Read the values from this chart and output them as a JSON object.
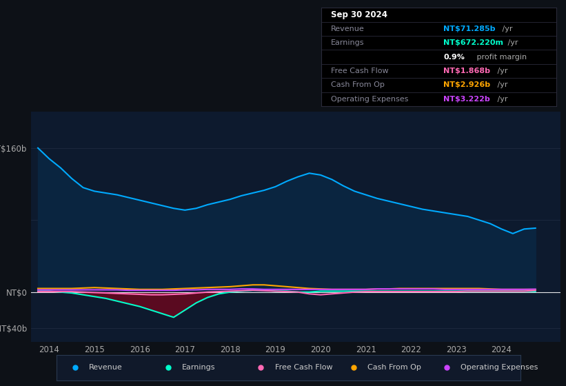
{
  "background_color": "#0d1117",
  "plot_bg_color": "#0d1a2e",
  "ylim": [
    -55,
    200
  ],
  "xlim_start": 2013.6,
  "xlim_end": 2025.3,
  "xticks": [
    2014,
    2015,
    2016,
    2017,
    2018,
    2019,
    2020,
    2021,
    2022,
    2023,
    2024
  ],
  "ytick_labels": [
    "NT$160b",
    "NT$0",
    "-NT$40b"
  ],
  "ytick_values": [
    160,
    0,
    -40
  ],
  "gridline_y": [
    160,
    80,
    0,
    -40
  ],
  "revenue_color": "#00aaff",
  "revenue_fill": "#0a2540",
  "earnings_color": "#00ffcc",
  "earnings_fill_neg": "#5a0a20",
  "free_cash_flow_color": "#ff69b4",
  "cash_from_op_color": "#ffa500",
  "operating_expenses_color": "#cc44ff",
  "revenue_x": [
    2013.75,
    2014.0,
    2014.25,
    2014.5,
    2014.75,
    2015.0,
    2015.25,
    2015.5,
    2015.75,
    2016.0,
    2016.25,
    2016.5,
    2016.75,
    2017.0,
    2017.25,
    2017.5,
    2017.75,
    2018.0,
    2018.25,
    2018.5,
    2018.75,
    2019.0,
    2019.25,
    2019.5,
    2019.75,
    2020.0,
    2020.25,
    2020.5,
    2020.75,
    2021.0,
    2021.25,
    2021.5,
    2021.75,
    2022.0,
    2022.25,
    2022.5,
    2022.75,
    2023.0,
    2023.25,
    2023.5,
    2023.75,
    2024.0,
    2024.25,
    2024.5,
    2024.75
  ],
  "revenue_y": [
    160,
    148,
    138,
    126,
    116,
    112,
    110,
    108,
    105,
    102,
    99,
    96,
    93,
    91,
    93,
    97,
    100,
    103,
    107,
    110,
    113,
    117,
    123,
    128,
    132,
    130,
    125,
    118,
    112,
    108,
    104,
    101,
    98,
    95,
    92,
    90,
    88,
    86,
    84,
    80,
    76,
    70,
    65,
    70,
    71
  ],
  "earnings_x": [
    2013.75,
    2014.0,
    2014.25,
    2014.5,
    2014.75,
    2015.0,
    2015.25,
    2015.5,
    2015.75,
    2016.0,
    2016.25,
    2016.5,
    2016.75,
    2017.0,
    2017.25,
    2017.5,
    2017.75,
    2018.0,
    2018.25,
    2018.5,
    2018.75,
    2019.0,
    2019.25,
    2019.5,
    2019.75,
    2020.0,
    2020.25,
    2020.5,
    2020.75,
    2021.0,
    2021.25,
    2021.5,
    2021.75,
    2022.0,
    2022.25,
    2022.5,
    2022.75,
    2023.0,
    2023.25,
    2023.5,
    2023.75,
    2024.0,
    2024.25,
    2024.5,
    2024.75
  ],
  "earnings_y": [
    1,
    1,
    0,
    -1,
    -3,
    -5,
    -7,
    -10,
    -13,
    -16,
    -20,
    -24,
    -28,
    -20,
    -12,
    -6,
    -2,
    0,
    1,
    2,
    2,
    1,
    1,
    0,
    0,
    1,
    1,
    1,
    1,
    1,
    1,
    1,
    1,
    1,
    1,
    1,
    1,
    1,
    1,
    1,
    1,
    1,
    1,
    1,
    0.67
  ],
  "fcf_x": [
    2013.75,
    2014.0,
    2014.25,
    2014.5,
    2014.75,
    2015.0,
    2015.25,
    2015.5,
    2015.75,
    2016.0,
    2016.25,
    2016.5,
    2016.75,
    2017.0,
    2017.25,
    2017.5,
    2017.75,
    2018.0,
    2018.25,
    2018.5,
    2018.75,
    2019.0,
    2019.25,
    2019.5,
    2019.75,
    2020.0,
    2020.25,
    2020.5,
    2020.75,
    2021.0,
    2021.25,
    2021.5,
    2021.75,
    2022.0,
    2022.25,
    2022.5,
    2022.75,
    2023.0,
    2023.25,
    2023.5,
    2023.75,
    2024.0,
    2024.25,
    2024.5,
    2024.75
  ],
  "fcf_y": [
    0.5,
    0.5,
    0.5,
    0.5,
    0,
    -0.5,
    -1,
    -1.5,
    -2,
    -2.5,
    -3,
    -3,
    -2.5,
    -2,
    -1,
    0,
    0.5,
    1,
    1.5,
    2,
    1.5,
    1,
    0.5,
    0,
    -2,
    -3,
    -2,
    -1,
    0,
    0.5,
    0.5,
    0.5,
    0.5,
    0.5,
    0.5,
    0.5,
    0.5,
    0.5,
    1,
    1,
    1,
    1,
    1,
    1,
    1.868
  ],
  "cop_x": [
    2013.75,
    2014.0,
    2014.25,
    2014.5,
    2014.75,
    2015.0,
    2015.25,
    2015.5,
    2015.75,
    2016.0,
    2016.25,
    2016.5,
    2016.75,
    2017.0,
    2017.25,
    2017.5,
    2017.75,
    2018.0,
    2018.25,
    2018.5,
    2018.75,
    2019.0,
    2019.25,
    2019.5,
    2019.75,
    2020.0,
    2020.25,
    2020.5,
    2020.75,
    2021.0,
    2021.25,
    2021.5,
    2021.75,
    2022.0,
    2022.25,
    2022.5,
    2022.75,
    2023.0,
    2023.25,
    2023.5,
    2023.75,
    2024.0,
    2024.25,
    2024.5,
    2024.75
  ],
  "cop_y": [
    4,
    4,
    4,
    4,
    4.5,
    5,
    4.5,
    4,
    3.5,
    3,
    3,
    3,
    3.5,
    4,
    4.5,
    5,
    5.5,
    6,
    7,
    8,
    8,
    7,
    6,
    5,
    4,
    3.5,
    3,
    3,
    3,
    3,
    3.5,
    3.5,
    4,
    4,
    4,
    4,
    4,
    4,
    4,
    4,
    3.5,
    3,
    3,
    3,
    2.926
  ],
  "opex_x": [
    2013.75,
    2014.0,
    2014.25,
    2014.5,
    2014.75,
    2015.0,
    2015.25,
    2015.5,
    2015.75,
    2016.0,
    2016.25,
    2016.5,
    2016.75,
    2017.0,
    2017.25,
    2017.5,
    2017.75,
    2018.0,
    2018.25,
    2018.5,
    2018.75,
    2019.0,
    2019.25,
    2019.5,
    2019.75,
    2020.0,
    2020.25,
    2020.5,
    2020.75,
    2021.0,
    2021.25,
    2021.5,
    2021.75,
    2022.0,
    2022.25,
    2022.5,
    2022.75,
    2023.0,
    2023.25,
    2023.5,
    2023.75,
    2024.0,
    2024.25,
    2024.5,
    2024.75
  ],
  "opex_y": [
    2.5,
    2.5,
    2.5,
    2.5,
    2.5,
    2.5,
    2.5,
    2.5,
    2,
    2,
    2,
    2,
    2,
    2.5,
    2.5,
    3,
    3,
    3,
    3.5,
    3.5,
    3,
    3,
    3,
    3,
    3,
    3,
    3,
    3,
    3,
    3,
    3.5,
    3.5,
    3.5,
    3.5,
    3.5,
    3.5,
    3,
    3,
    3,
    3,
    3,
    3,
    3,
    3,
    3.222
  ],
  "legend": [
    {
      "label": "Revenue",
      "color": "#00aaff"
    },
    {
      "label": "Earnings",
      "color": "#00ffcc"
    },
    {
      "label": "Free Cash Flow",
      "color": "#ff69b4"
    },
    {
      "label": "Cash From Op",
      "color": "#ffa500"
    },
    {
      "label": "Operating Expenses",
      "color": "#cc44ff"
    }
  ],
  "infobox_rows": [
    {
      "label": "Sep 30 2024",
      "value": "",
      "val_color": "#ffffff",
      "label_color": "#ffffff",
      "is_header": true
    },
    {
      "label": "Revenue",
      "value": "NT$71.285b",
      "val_color": "#00aaff",
      "label_color": "#888899",
      "suffix": " /yr"
    },
    {
      "label": "Earnings",
      "value": "NT$672.220m",
      "val_color": "#00ffcc",
      "label_color": "#888899",
      "suffix": " /yr"
    },
    {
      "label": "",
      "value": "0.9%",
      "val_color": "#ffffff",
      "label_color": "#888899",
      "suffix": " profit margin",
      "is_margin": true
    },
    {
      "label": "Free Cash Flow",
      "value": "NT$1.868b",
      "val_color": "#ff69b4",
      "label_color": "#888899",
      "suffix": " /yr"
    },
    {
      "label": "Cash From Op",
      "value": "NT$2.926b",
      "val_color": "#ffa500",
      "label_color": "#888899",
      "suffix": " /yr"
    },
    {
      "label": "Operating Expenses",
      "value": "NT$3.222b",
      "val_color": "#cc44ff",
      "label_color": "#888899",
      "suffix": " /yr"
    }
  ]
}
